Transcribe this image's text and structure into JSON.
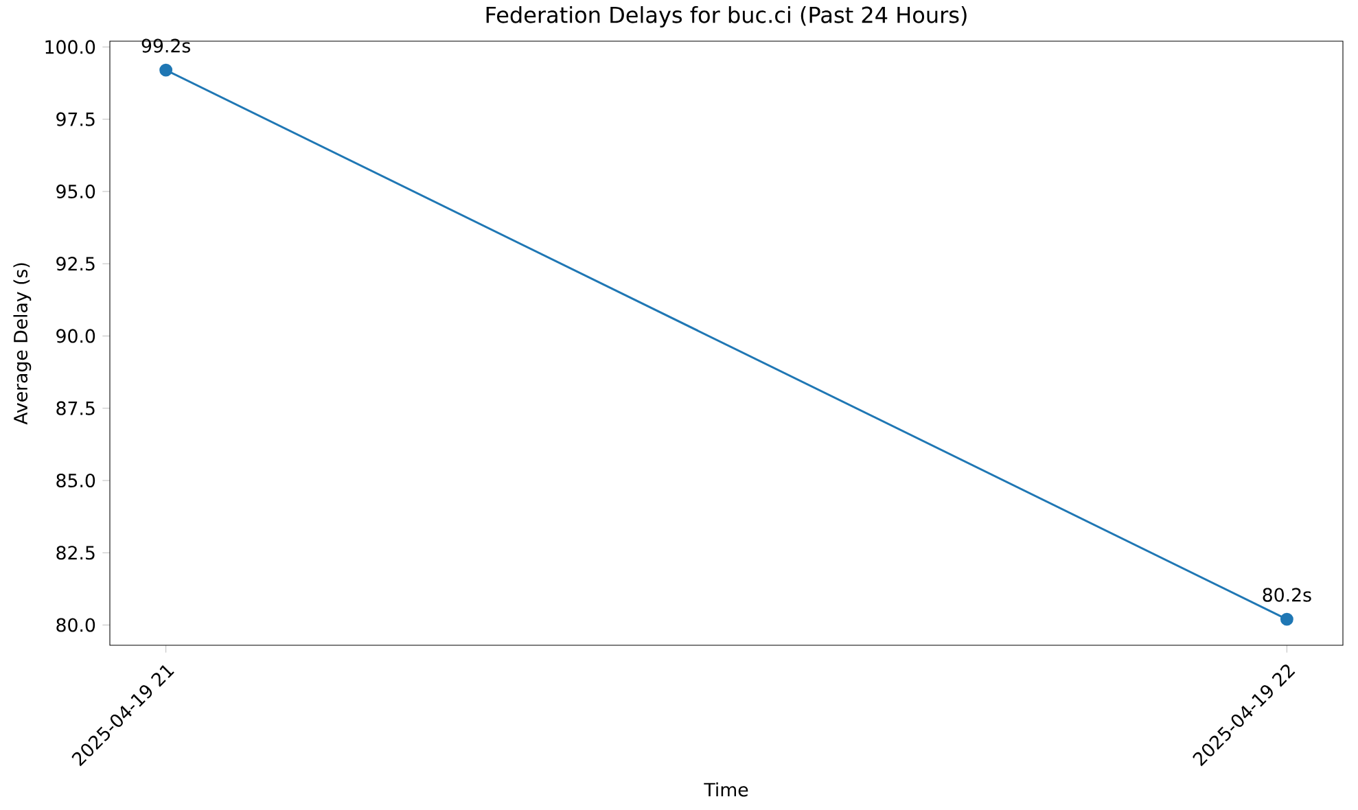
{
  "chart_data": {
    "type": "line",
    "title": "Federation Delays for buc.ci (Past 24 Hours)",
    "xlabel": "Time",
    "ylabel": "Average Delay (s)",
    "x": [
      "2025-04-19T21:00",
      "2025-04-19T22:00"
    ],
    "values": [
      99.2,
      80.2
    ],
    "value_labels": [
      "99.2s",
      "80.2s"
    ],
    "color": "#1f77b4",
    "marker": "circle",
    "xlim": [
      "2025-04-19T20:57",
      "2025-04-19T22:03"
    ],
    "xticks": [
      {
        "value": "2025-04-19T21:00",
        "label": "2025-04-19 21"
      },
      {
        "value": "2025-04-19T22:00",
        "label": "2025-04-19 22"
      }
    ],
    "ylim": [
      79.3,
      100.2
    ],
    "yticks": [
      {
        "value": 80,
        "label": "80.0"
      },
      82.5,
      {
        "value": 85,
        "label": "85.0"
      },
      87.5,
      {
        "value": 90,
        "label": "90.0"
      },
      92.5,
      {
        "value": 95,
        "label": "95.0"
      },
      97.5,
      {
        "value": 100,
        "label": "100.0"
      }
    ]
  }
}
